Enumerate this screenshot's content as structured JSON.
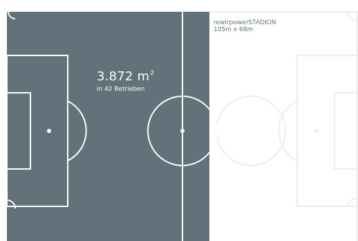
{
  "stadium": {
    "name": "rewirpowerSTADION",
    "dimensions": "105m x 68m"
  },
  "stat": {
    "area_value": "3.872 m",
    "area_unit_sup": "2",
    "subtitle": "in 42 Betrieben"
  },
  "colors": {
    "fill": "#62727b",
    "line": "#ffffff",
    "faint_line": "#ececec",
    "text_dark": "#62727b"
  },
  "coverage_fraction": 0.48
}
